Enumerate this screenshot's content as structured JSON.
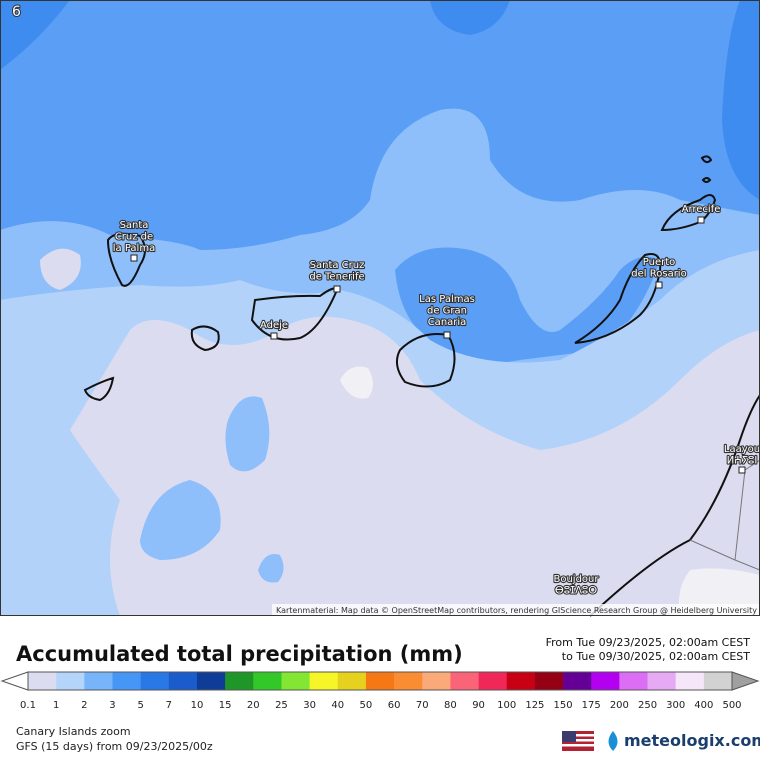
{
  "map": {
    "corner_label": "6",
    "places": [
      {
        "lines": [
          "Santa",
          "Cruz de",
          "la Palma"
        ]
      },
      {
        "lines": [
          "Santa Cruz",
          "de Tenerife"
        ]
      },
      {
        "lines": [
          "Adeje"
        ]
      },
      {
        "lines": [
          "Las Palmas",
          "de Gran",
          "Canaria"
        ]
      },
      {
        "lines": [
          "Puerto",
          "del Rosario"
        ]
      },
      {
        "lines": [
          "Arrecife"
        ]
      },
      {
        "lines": [
          "Laayou",
          "ⵍⵄⵢⵓⵏ"
        ]
      },
      {
        "lines": [
          "Boujdour",
          "ⴱⵓⵊⴷⵓⵔ"
        ]
      }
    ],
    "attribution": "Kartenmaterial: Map data © OpenStreetMap contributors, rendering GIScience Research Group @ Heidelberg University"
  },
  "legend": {
    "title": "Accumulated total precipitation (mm)",
    "period_from": "From Tue 09/23/2025, 02:00am CEST",
    "period_to": "to Tue 09/30/2025, 02:00am CEST",
    "under_color": "#ffffff",
    "over_color": "#a0a0a0",
    "colors": [
      "#dcdcf0",
      "#b4d4fa",
      "#78b4fa",
      "#4696f5",
      "#2878e6",
      "#1a5ccc",
      "#0f3c96",
      "#1e9628",
      "#32c828",
      "#82e632",
      "#f5f528",
      "#e6d21e",
      "#f57814",
      "#fa8c32",
      "#faaa78",
      "#fa6478",
      "#f0285a",
      "#c80014",
      "#960014",
      "#640096",
      "#b400f0",
      "#dc6ef5",
      "#e6aaf5",
      "#f5e6fa",
      "#d2d2d2"
    ],
    "ticks": [
      0.1,
      1,
      2,
      3,
      5,
      7,
      10,
      15,
      20,
      25,
      30,
      40,
      50,
      60,
      70,
      80,
      90,
      100,
      125,
      150,
      175,
      200,
      250,
      300,
      400,
      500
    ]
  },
  "footer": {
    "region": "Canary Islands zoom",
    "model": "GFS (15 days) from  09/23/2025/00z",
    "brand": "meteologix.com"
  }
}
